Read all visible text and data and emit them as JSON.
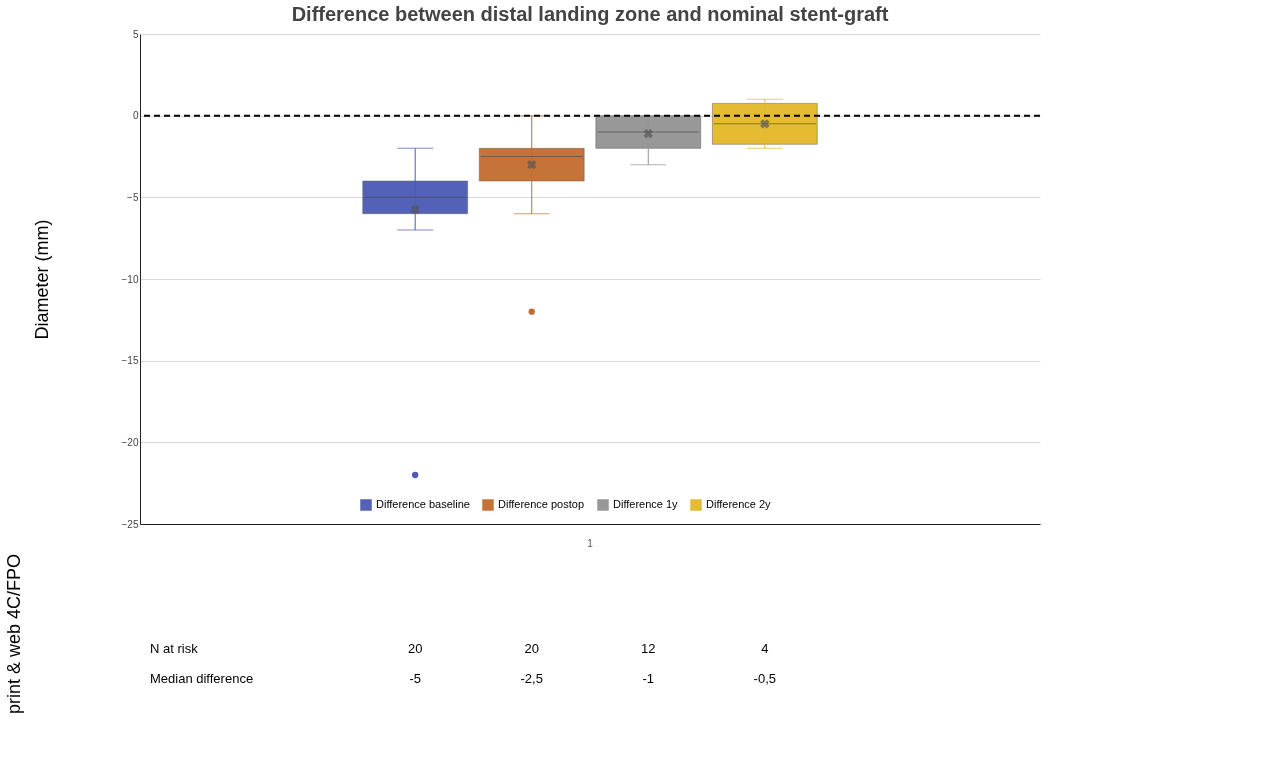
{
  "chart_data": {
    "type": "box",
    "title": "Difference between distal landing zone and nominal stent-graft",
    "ylabel": "Diameter (mm)",
    "categories": [
      "1"
    ],
    "series": [
      {
        "name": "Difference baseline",
        "color": "#4a5ab5",
        "boxes": [
          {
            "low": -7,
            "q1": -6,
            "median": -5,
            "q3": -4,
            "high": -2,
            "mean": -5.75,
            "outliers": [
              -22
            ]
          }
        ]
      },
      {
        "name": "Difference postop",
        "color": "#c46c2f",
        "boxes": [
          {
            "low": -6,
            "q1": -4,
            "median": -2.5,
            "q3": -2,
            "high": 0,
            "mean": -3,
            "outliers": [
              -12
            ]
          }
        ]
      },
      {
        "name": "Difference 1y",
        "color": "#939393",
        "boxes": [
          {
            "low": -3,
            "q1": -2,
            "median": -1,
            "q3": 0,
            "high": 0,
            "mean": -1.1
          }
        ]
      },
      {
        "name": "Difference 2y",
        "color": "#e3b829",
        "boxes": [
          {
            "low": -2,
            "q1": -1.75,
            "median": -0.5,
            "q3": 0.75,
            "high": 1,
            "mean": -0.5
          }
        ]
      }
    ],
    "ylim": [
      -25,
      5
    ],
    "yticks": [
      -25,
      -20,
      -15,
      -10,
      -5,
      0,
      5
    ],
    "ref_lines": [
      {
        "axis": "y",
        "value": 0,
        "color": "#000000",
        "line_style": "dashed"
      }
    ],
    "grid": "y",
    "legend": "bottom",
    "marker": "cross",
    "annotations": [
      "N at risk",
      "20",
      "20",
      "12",
      "4",
      "Median difference",
      "-5",
      "-2,5",
      "-1",
      "-0,5",
      "print & web 4C/FPO"
    ]
  }
}
